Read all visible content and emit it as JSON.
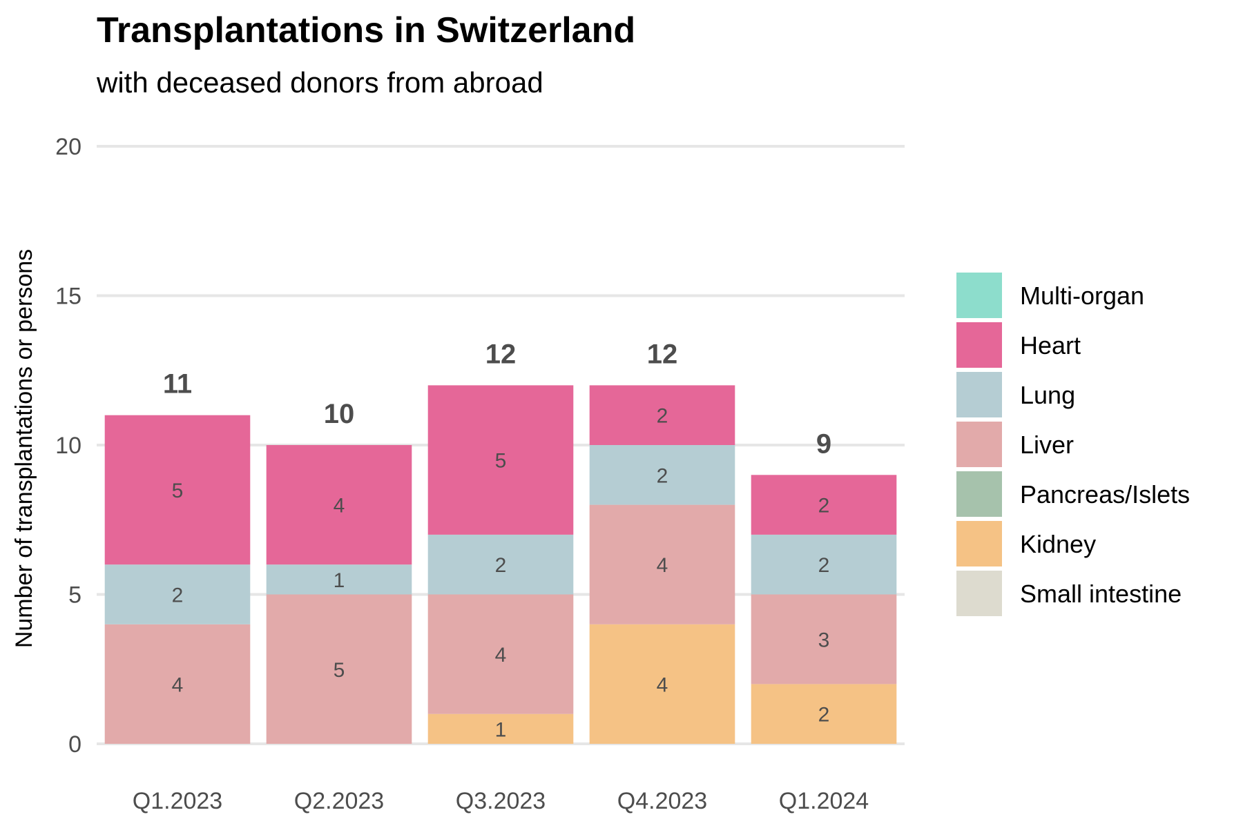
{
  "header": {
    "title": "Transplantations in Switzerland",
    "subtitle": "with deceased donors from abroad"
  },
  "chart_data": {
    "type": "bar",
    "stacked": true,
    "title": "Transplantations in Switzerland",
    "subtitle": "with deceased donors from abroad",
    "xlabel": "",
    "ylabel": "Number of transplantations or persons",
    "ylim": [
      0,
      20
    ],
    "yticks": [
      0,
      5,
      10,
      15,
      20
    ],
    "grid": true,
    "legend_position": "right",
    "categories": [
      "Q1.2023",
      "Q2.2023",
      "Q3.2023",
      "Q4.2023",
      "Q1.2024"
    ],
    "totals": [
      11,
      10,
      12,
      12,
      9
    ],
    "series": [
      {
        "name": "Kidney",
        "color": "#F5C285",
        "values": [
          0,
          0,
          1,
          4,
          2
        ]
      },
      {
        "name": "Pancreas/Islets",
        "color": "#A6C2AC",
        "values": [
          0,
          0,
          0,
          0,
          0
        ]
      },
      {
        "name": "Liver",
        "color": "#E2AAAA",
        "values": [
          4,
          5,
          4,
          4,
          3
        ]
      },
      {
        "name": "Lung",
        "color": "#B5CDD3",
        "values": [
          2,
          1,
          2,
          2,
          2
        ]
      },
      {
        "name": "Heart",
        "color": "#E56798",
        "values": [
          5,
          4,
          5,
          2,
          2
        ]
      },
      {
        "name": "Multi-organ",
        "color": "#8DDDCC",
        "values": [
          0,
          0,
          0,
          0,
          0
        ]
      },
      {
        "name": "Small intestine",
        "color": "#DDDBCF",
        "values": [
          0,
          0,
          0,
          0,
          0
        ]
      }
    ],
    "legend_order": [
      "Multi-organ",
      "Heart",
      "Lung",
      "Liver",
      "Pancreas/Islets",
      "Kidney",
      "Small intestine"
    ]
  }
}
